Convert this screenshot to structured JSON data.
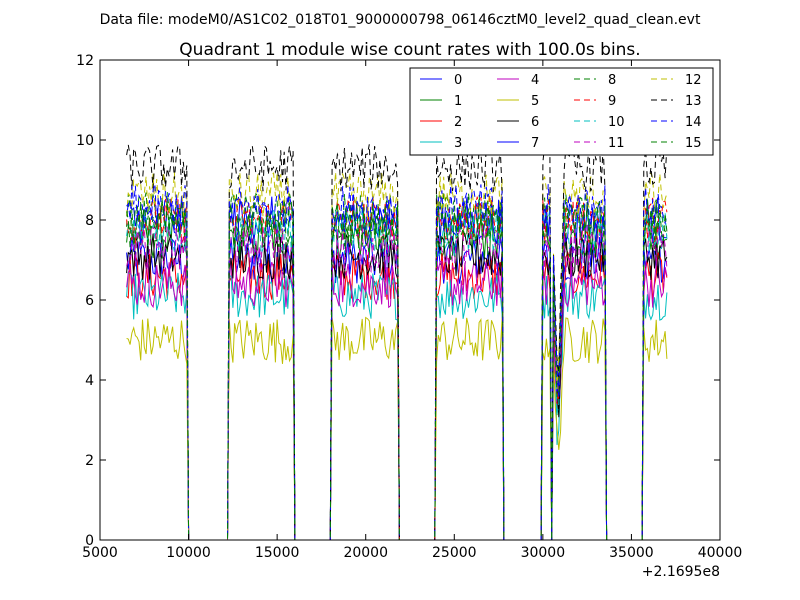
{
  "figure": {
    "suptitle": "Data file: modeM0/AS1C02_018T01_9000000798_06146cztM0_level2_quad_clean.evt"
  },
  "chart_data": {
    "type": "line",
    "title": "Quadrant 1 module wise count rates with 100.0s bins.",
    "xlabel": "",
    "ylabel": "",
    "x_offset_label": "+2.1695e8",
    "xlim": [
      5000,
      40000
    ],
    "ylim": [
      0,
      12
    ],
    "x_ticks": [
      5000,
      10000,
      15000,
      20000,
      25000,
      30000,
      35000,
      40000
    ],
    "y_ticks": [
      0,
      2,
      4,
      6,
      8,
      10,
      12
    ],
    "grid": false,
    "legend_position": "top-right",
    "legend_columns": 4,
    "bin_size_s": 100,
    "x_start": 6500,
    "x_end": 37000,
    "segments": [
      [
        6500,
        9900
      ],
      [
        12300,
        15900
      ],
      [
        18100,
        21800
      ],
      [
        24000,
        27700
      ],
      [
        30000,
        30400
      ],
      [
        30600,
        33500
      ],
      [
        35700,
        37000
      ]
    ],
    "series": [
      {
        "name": "0",
        "color": "#0000ff",
        "dash": "solid",
        "level": 7.0
      },
      {
        "name": "1",
        "color": "#008000",
        "dash": "solid",
        "level": 7.6
      },
      {
        "name": "2",
        "color": "#ff0000",
        "dash": "solid",
        "level": 6.6
      },
      {
        "name": "3",
        "color": "#00bfbf",
        "dash": "solid",
        "level": 6.1
      },
      {
        "name": "4",
        "color": "#bf00bf",
        "dash": "solid",
        "level": 6.4
      },
      {
        "name": "5",
        "color": "#bfbf00",
        "dash": "solid",
        "level": 5.0
      },
      {
        "name": "6",
        "color": "#000000",
        "dash": "solid",
        "level": 7.1
      },
      {
        "name": "7",
        "color": "#0000ff",
        "dash": "solid",
        "level": 8.0
      },
      {
        "name": "8",
        "color": "#008000",
        "dash": "dashed",
        "level": 8.1
      },
      {
        "name": "9",
        "color": "#ff0000",
        "dash": "dashed",
        "level": 8.0
      },
      {
        "name": "10",
        "color": "#00bfbf",
        "dash": "dashed",
        "level": 7.7
      },
      {
        "name": "11",
        "color": "#bf00bf",
        "dash": "dashed",
        "level": 7.3
      },
      {
        "name": "12",
        "color": "#bfbf00",
        "dash": "dashed",
        "level": 8.6
      },
      {
        "name": "13",
        "color": "#000000",
        "dash": "dashed",
        "level": 9.3
      },
      {
        "name": "14",
        "color": "#0000ff",
        "dash": "dashed",
        "level": 8.3
      },
      {
        "name": "15",
        "color": "#008000",
        "dash": "dashed",
        "level": 7.9
      }
    ]
  }
}
